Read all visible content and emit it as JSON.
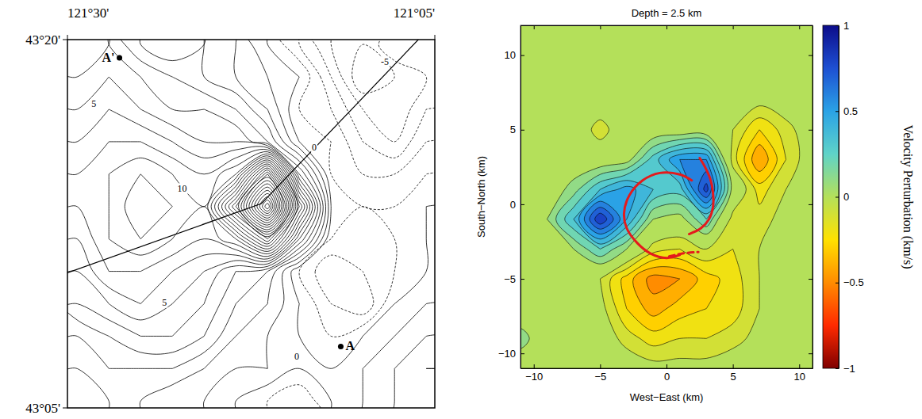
{
  "chart_data": [
    {
      "type": "contour",
      "xlim": [
        121.5,
        121.0833
      ],
      "ylim": [
        43.0833,
        43.3333
      ],
      "xticks": [
        {
          "value": 121.5,
          "label": "121°30'"
        },
        {
          "value": 121.0833,
          "label": "121°05'"
        }
      ],
      "yticks": [
        {
          "value": 43.0833,
          "label": "43°05'"
        },
        {
          "value": 43.3333,
          "label": "43°20'"
        }
      ],
      "x_grid": [
        121.489,
        121.453,
        121.417,
        121.381,
        121.345,
        121.309,
        121.273,
        121.237,
        121.201,
        121.165,
        121.129,
        121.093
      ],
      "y_grid": [
        43.088,
        43.11,
        43.132,
        43.154,
        43.176,
        43.198,
        43.22,
        43.242,
        43.264,
        43.286,
        43.308,
        43.33
      ],
      "z": [
        [
          1,
          2,
          2,
          1,
          1,
          0,
          -1,
          -2,
          0,
          1,
          2,
          2
        ],
        [
          2,
          3,
          3,
          3,
          2,
          1,
          1,
          0,
          0,
          1,
          2,
          3
        ],
        [
          3,
          4,
          5,
          5,
          4,
          2,
          1,
          0,
          -1,
          0,
          1,
          2
        ],
        [
          5,
          6,
          7,
          6,
          5,
          3,
          2,
          0,
          -2,
          -3,
          0,
          1
        ],
        [
          6,
          8,
          8,
          7,
          6,
          4,
          3,
          -1,
          -3,
          -2,
          -1,
          0
        ],
        [
          7,
          9,
          10,
          9,
          8,
          10,
          16,
          6,
          -1,
          -2,
          -1,
          0
        ],
        [
          8,
          9,
          11,
          10,
          9,
          18,
          30,
          12,
          0,
          -1,
          -1,
          0
        ],
        [
          8,
          9,
          10,
          9,
          8,
          10,
          20,
          5,
          -1,
          -2,
          -2,
          -1
        ],
        [
          7,
          8,
          8,
          7,
          6,
          6,
          4,
          0,
          -1,
          -3,
          -4,
          -2
        ],
        [
          6,
          7,
          6,
          5,
          5,
          4,
          2,
          -1,
          -2,
          -4,
          -5,
          -3
        ],
        [
          5,
          6,
          5,
          4,
          3,
          2,
          1,
          0,
          -3,
          -6,
          -5,
          -4
        ],
        [
          4,
          5,
          3,
          2,
          3,
          2,
          0,
          -2,
          -4,
          -5,
          -3,
          -4
        ]
      ],
      "levels": [
        -6,
        -5,
        -4,
        -3,
        -2,
        -1,
        0,
        1,
        2,
        3,
        4,
        5,
        6,
        7,
        8,
        9,
        10,
        11,
        12,
        13,
        14,
        15,
        16,
        17,
        18,
        19,
        20,
        21,
        22,
        23,
        24,
        25,
        26,
        27,
        28,
        29
      ],
      "color": "#000000",
      "lines": [
        {
          "x": [
            121.5,
            121.28,
            121.0833
          ],
          "y": [
            43.175,
            43.222,
            43.345
          ],
          "color": "#000000",
          "line_style": "solid"
        }
      ],
      "points": [
        {
          "label": "A",
          "x": 121.19,
          "y": 43.125
        },
        {
          "label": "A'",
          "x": 121.441,
          "y": 43.321
        }
      ],
      "annotations": [
        {
          "text": "10",
          "x": 121.37,
          "y": 43.232
        },
        {
          "text": "5",
          "x": 121.47,
          "y": 43.29
        },
        {
          "text": "-5",
          "x": 121.14,
          "y": 43.318
        },
        {
          "text": "5",
          "x": 121.39,
          "y": 43.155
        },
        {
          "text": "0",
          "x": 121.24,
          "y": 43.118
        },
        {
          "text": "0",
          "x": 121.22,
          "y": 43.26
        }
      ]
    },
    {
      "type": "contour",
      "title": "Depth = 2.5 km",
      "xlabel": "West−East (km)",
      "ylabel": "South−North (km)",
      "xlim": [
        -11,
        11
      ],
      "ylim": [
        -11,
        12
      ],
      "xticks": [
        {
          "value": -10,
          "label": "−10"
        },
        {
          "value": -5,
          "label": "−5"
        },
        0,
        5,
        10
      ],
      "yticks": [
        {
          "value": -10,
          "label": "−10"
        },
        {
          "value": -5,
          "label": "−5"
        },
        0,
        5,
        10
      ],
      "x_grid": [
        -11,
        -9,
        -7,
        -5,
        -3,
        -1,
        1,
        3,
        5,
        7,
        9,
        11
      ],
      "y_grid": [
        -11,
        -9,
        -7,
        -5,
        -3,
        -1,
        1,
        3,
        5,
        7,
        9,
        11
      ],
      "z": [
        [
          0,
          0,
          0,
          0,
          0,
          -0.05,
          -0.05,
          -0.05,
          0,
          0,
          0,
          0
        ],
        [
          0.15,
          0,
          0,
          0,
          -0.15,
          -0.25,
          -0.2,
          -0.2,
          -0.15,
          -0.05,
          0,
          0
        ],
        [
          0,
          0,
          0,
          -0.05,
          -0.3,
          -0.45,
          -0.35,
          -0.3,
          -0.25,
          -0.1,
          0,
          0
        ],
        [
          0,
          0,
          0,
          -0.1,
          -0.35,
          -0.55,
          -0.5,
          -0.35,
          -0.25,
          -0.1,
          0,
          0
        ],
        [
          0,
          0,
          0.1,
          0.3,
          0.1,
          -0.15,
          -0.2,
          -0.1,
          -0.2,
          -0.1,
          0,
          0
        ],
        [
          0,
          0.1,
          0.4,
          0.9,
          0.5,
          0.1,
          0.05,
          0.3,
          -0.15,
          -0.15,
          -0.05,
          0
        ],
        [
          0,
          0,
          0.15,
          0.4,
          0.55,
          0.4,
          0.35,
          0.85,
          0.05,
          -0.25,
          -0.1,
          0
        ],
        [
          0,
          0,
          0,
          0,
          0.05,
          0.35,
          0.6,
          0.6,
          -0.15,
          -0.5,
          -0.2,
          0
        ],
        [
          0,
          0,
          0,
          -0.15,
          0,
          0,
          0,
          0,
          -0.1,
          -0.3,
          -0.15,
          0
        ],
        [
          0,
          0,
          0,
          0,
          0,
          0,
          0,
          0,
          0,
          -0.05,
          0,
          0
        ],
        [
          0,
          0,
          0,
          0,
          0,
          0,
          0,
          0,
          0,
          0,
          0,
          0
        ],
        [
          0,
          0,
          0,
          0,
          0,
          0,
          0,
          0,
          0,
          0,
          0,
          0
        ]
      ],
      "levels": [
        -0.5,
        -0.4,
        -0.3,
        -0.2,
        -0.1,
        0.1,
        0.2,
        0.3,
        0.4,
        0.5,
        0.6,
        0.7,
        0.8
      ],
      "colorbar": {
        "label": "Velocity Perturbation (km/s)",
        "lim": [
          -1,
          1
        ],
        "ticks": [
          {
            "value": -1,
            "label": "−1"
          },
          {
            "value": -0.5,
            "label": "−0.5"
          },
          0,
          0.5,
          1
        ]
      },
      "lines": [
        {
          "x": [
            1.9,
            1.0,
            -0.5,
            -1.8,
            -2.8,
            -3.2,
            -3.0,
            -2.2,
            -1.2,
            0.0,
            1.0
          ],
          "y": [
            1.6,
            2.0,
            2.1,
            1.6,
            0.6,
            -0.6,
            -1.6,
            -2.6,
            -3.3,
            -3.6,
            -3.4
          ],
          "color": "#e41a1c",
          "line_style": "solid"
        },
        {
          "x": [
            2.5,
            2.9,
            3.3,
            3.5,
            3.5,
            3.2,
            2.6,
            1.7
          ],
          "y": [
            3.1,
            2.5,
            1.7,
            0.8,
            -0.2,
            -1.0,
            -1.6,
            -2.0
          ],
          "color": "#e41a1c",
          "line_style": "solid"
        },
        {
          "x": [
            0.2,
            1.2,
            2.4
          ],
          "y": [
            -3.5,
            -3.3,
            -3.2
          ],
          "color": "#e41a1c",
          "line_style": "dashed"
        }
      ]
    }
  ]
}
